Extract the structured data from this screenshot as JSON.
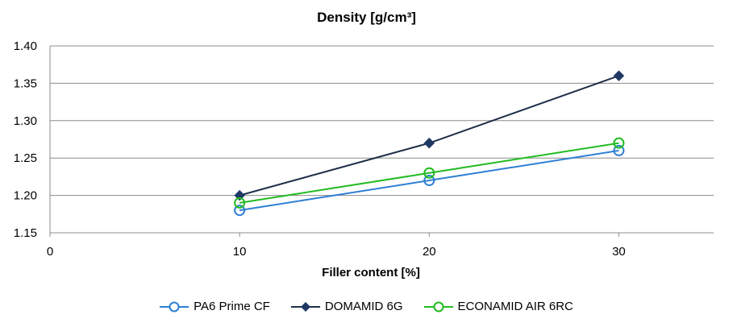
{
  "chart_data": {
    "type": "line",
    "title": "Density [g/cm³]",
    "xlabel": "Filler content [%]",
    "ylabel": "",
    "xlim": [
      0,
      35
    ],
    "ylim": [
      1.15,
      1.4
    ],
    "x_ticks": [
      0,
      10,
      20,
      30
    ],
    "y_ticks": [
      1.15,
      1.2,
      1.25,
      1.3,
      1.35,
      1.4
    ],
    "x_tick_labels": [
      "0",
      "10",
      "20",
      "30"
    ],
    "y_tick_labels": [
      "1.15",
      "1.20",
      "1.25",
      "1.30",
      "1.35",
      "1.40"
    ],
    "grid": true,
    "legend_position": "bottom",
    "series": [
      {
        "name": "PA6 Prime CF",
        "color": "#2e7fd3",
        "marker": "circle",
        "x": [
          10,
          20,
          30
        ],
        "y": [
          1.18,
          1.22,
          1.26
        ]
      },
      {
        "name": "DOMAMID 6G",
        "color": "#1f2f4a",
        "marker": "diamond",
        "x": [
          10,
          20,
          30
        ],
        "y": [
          1.2,
          1.27,
          1.36
        ]
      },
      {
        "name": "ECONAMID AIR 6RC",
        "color": "#22bb22",
        "marker": "circle",
        "x": [
          10,
          20,
          30
        ],
        "y": [
          1.19,
          1.23,
          1.27
        ]
      }
    ]
  }
}
